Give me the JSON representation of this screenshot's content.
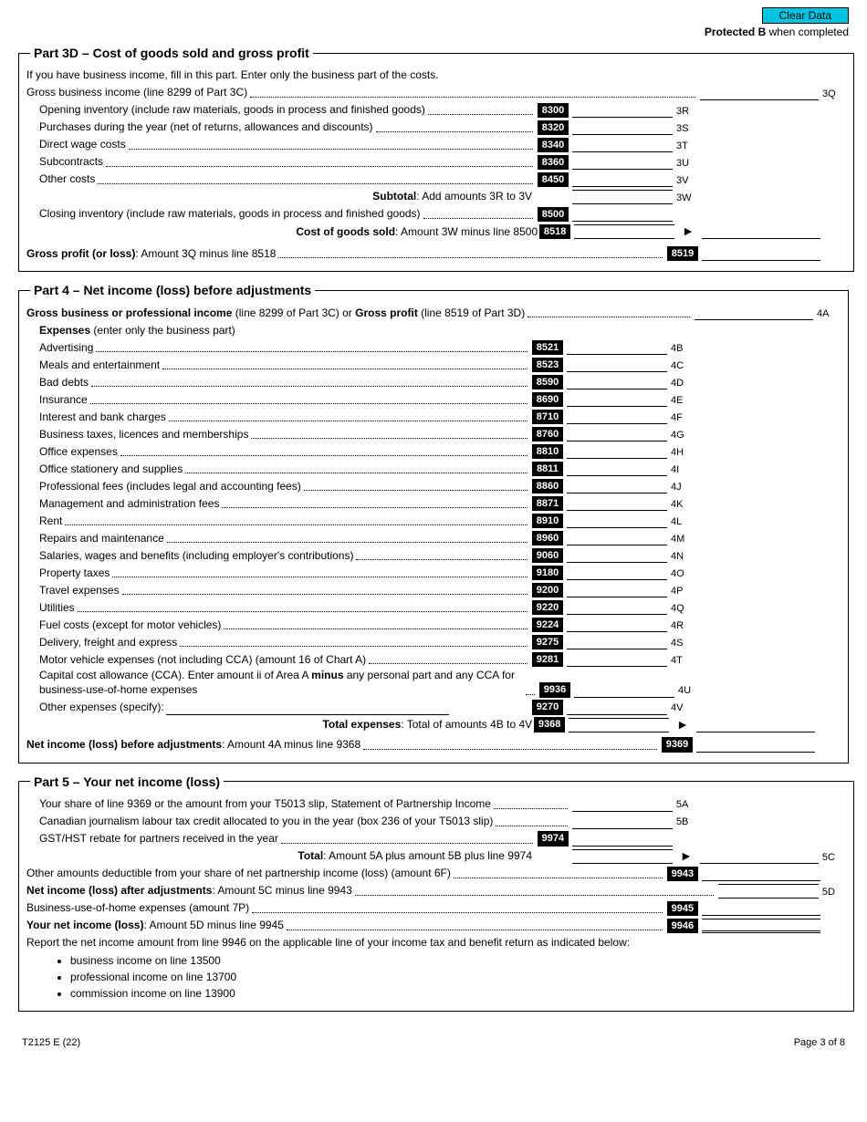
{
  "buttons": {
    "clear": "Clear Data"
  },
  "header": {
    "protected_b": "Protected B",
    "when_completed": " when completed"
  },
  "part3d": {
    "title": "Part 3D – Cost of goods sold and gross profit",
    "intro": "If you have business income, fill in this part. Enter only the business part of the costs.",
    "gross_income": "Gross business income (line 8299 of Part 3C)",
    "tag_3Q": "3Q",
    "rows": [
      {
        "label": "Opening inventory (include raw materials, goods in process and finished goods)",
        "code": "8300",
        "tag": "3R"
      },
      {
        "label": "Purchases during the year (net of returns, allowances and discounts)",
        "code": "8320",
        "tag": "3S"
      },
      {
        "label": "Direct wage costs",
        "code": "8340",
        "tag": "3T"
      },
      {
        "label": "Subcontracts",
        "code": "8360",
        "tag": "3U"
      },
      {
        "label": "Other costs",
        "code": "8450",
        "tag": "3V"
      }
    ],
    "subtotal_label": "Subtotal",
    "subtotal_text": ": Add amounts 3R to 3V",
    "subtotal_tag": "3W",
    "closing_inv": "Closing inventory (include raw materials, goods in process and finished goods)",
    "closing_code": "8500",
    "cogs_label": "Cost of goods sold",
    "cogs_text": ": Amount 3W minus line 8500",
    "cogs_code": "8518",
    "gp_label": "Gross profit (or loss)",
    "gp_text": ": Amount 3Q minus line 8518",
    "gp_code": "8519"
  },
  "part4": {
    "title": "Part 4 – Net income (loss) before adjustments",
    "gross_line": "Gross business or professional income",
    "gross_line_rest": " (line 8299 of Part 3C) or ",
    "gross_profit": "Gross profit",
    "gross_profit_rest": " (line 8519 of Part 3D)",
    "tag_4A": "4A",
    "expenses_head": "Expenses",
    "expenses_rest": " (enter only the business part)",
    "rows": [
      {
        "label": "Advertising",
        "code": "8521",
        "tag": "4B"
      },
      {
        "label": "Meals and entertainment",
        "code": "8523",
        "tag": "4C"
      },
      {
        "label": "Bad debts",
        "code": "8590",
        "tag": "4D"
      },
      {
        "label": "Insurance",
        "code": "8690",
        "tag": "4E"
      },
      {
        "label": "Interest and bank charges",
        "code": "8710",
        "tag": "4F"
      },
      {
        "label": "Business taxes, licences and memberships",
        "code": "8760",
        "tag": "4G"
      },
      {
        "label": "Office expenses",
        "code": "8810",
        "tag": "4H"
      },
      {
        "label": "Office stationery and supplies",
        "code": "8811",
        "tag": "4I"
      },
      {
        "label": "Professional fees (includes legal and accounting fees)",
        "code": "8860",
        "tag": "4J"
      },
      {
        "label": "Management and administration fees",
        "code": "8871",
        "tag": "4K"
      },
      {
        "label": "Rent",
        "code": "8910",
        "tag": "4L"
      },
      {
        "label": "Repairs and maintenance",
        "code": "8960",
        "tag": "4M"
      },
      {
        "label": "Salaries, wages and benefits (including employer's contributions)",
        "code": "9060",
        "tag": "4N"
      },
      {
        "label": "Property taxes",
        "code": "9180",
        "tag": "4O"
      },
      {
        "label": "Travel expenses",
        "code": "9200",
        "tag": "4P"
      },
      {
        "label": "Utilities",
        "code": "9220",
        "tag": "4Q"
      },
      {
        "label": "Fuel costs (except for motor vehicles)",
        "code": "9224",
        "tag": "4R"
      },
      {
        "label": "Delivery, freight and express",
        "code": "9275",
        "tag": "4S"
      },
      {
        "label": "Motor vehicle expenses (not including CCA) (amount 16 of Chart A)",
        "code": "9281",
        "tag": "4T"
      }
    ],
    "cca_label1": "Capital cost allowance (CCA). Enter amount ii of Area A ",
    "cca_minus": "minus",
    "cca_label2": " any personal part and any CCA for business-use-of-home expenses",
    "cca_code": "9936",
    "cca_tag": "4U",
    "other_label": "Other expenses (specify):",
    "other_code": "9270",
    "other_tag": "4V",
    "totexp_label": "Total expenses",
    "totexp_text": ": Total of amounts 4B to 4V",
    "totexp_code": "9368",
    "ni_label": "Net income (loss) before adjustments",
    "ni_text": ": Amount 4A minus line 9368",
    "ni_code": "9369"
  },
  "part5": {
    "title": "Part 5 – Your net income (loss)",
    "l1": "Your share of line 9369 or the amount from your T5013 slip, Statement of Partnership Income",
    "t1": "5A",
    "l2": "Canadian journalism labour tax credit allocated to you in the year (box 236 of your T5013 slip)",
    "t2": "5B",
    "l3": "GST/HST rebate for partners received in the year",
    "c3": "9974",
    "tot_label": "Total",
    "tot_text": ": Amount 5A plus amount 5B plus line 9974",
    "tot_tag": "5C",
    "l4": "Other amounts deductible from your share of net partnership income (loss) (amount 6F)",
    "c4": "9943",
    "l5": "Net income (loss) after adjustments",
    "l5_text": ": Amount 5C minus line 9943",
    "t5": "5D",
    "l6": "Business-use-of-home expenses (amount 7P)",
    "c6": "9945",
    "l7": "Your net income (loss)",
    "l7_text": ": Amount 5D minus line 9945",
    "c7": "9946",
    "note": "Report the net income amount from line 9946 on the applicable line of your income tax and benefit return as indicated below:",
    "bullets": [
      "business income on line 13500",
      "professional income on line 13700",
      "commission income on line 13900"
    ]
  },
  "footer": {
    "formid": "T2125 E (22)",
    "page": "Page 3 of 8"
  }
}
